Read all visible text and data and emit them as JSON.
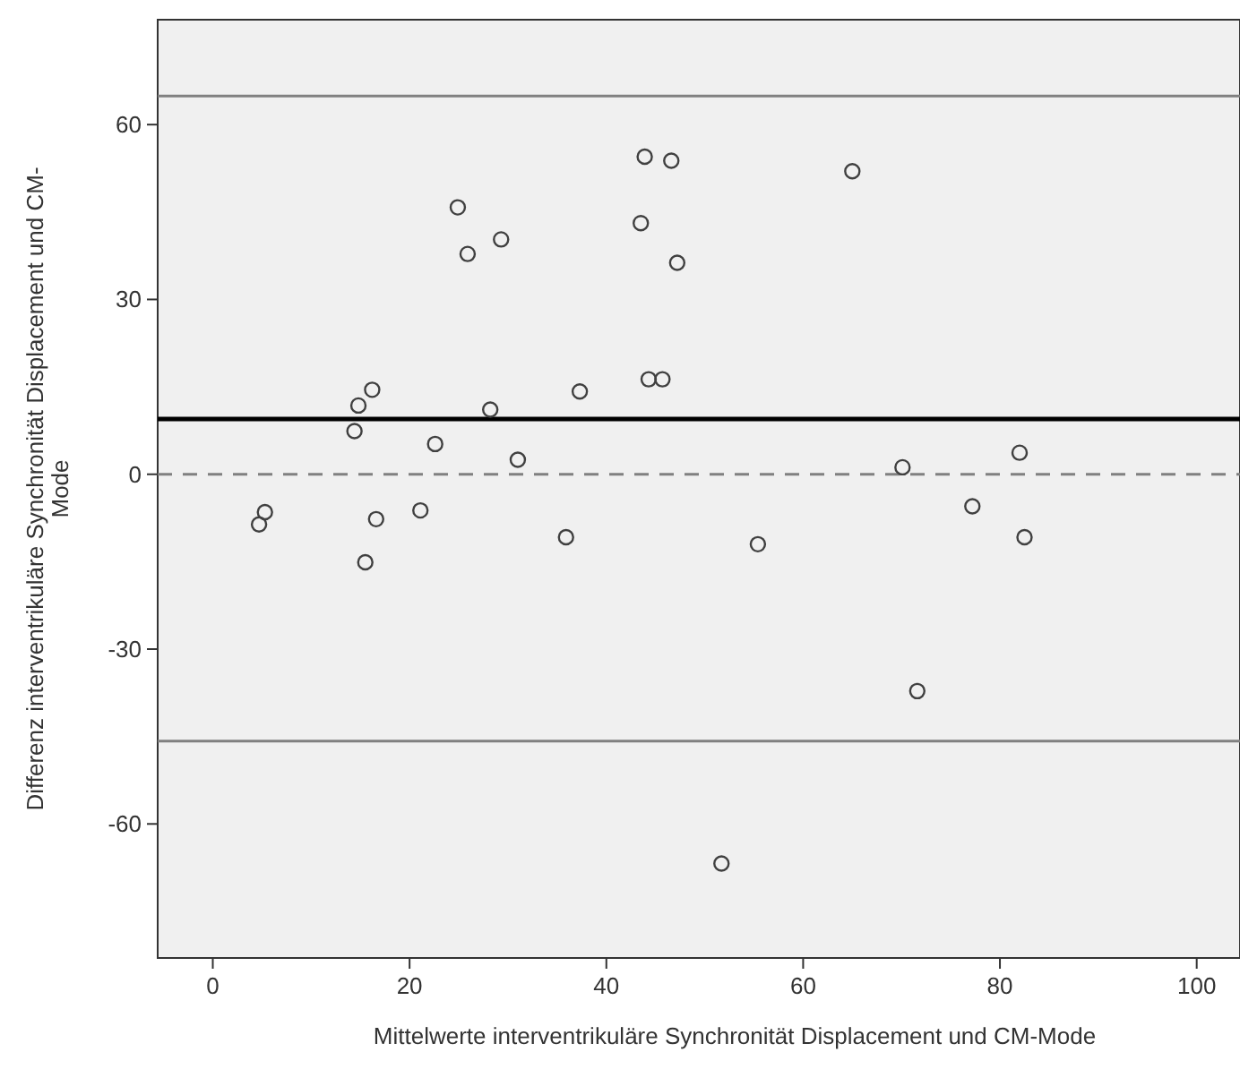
{
  "chart_data": {
    "type": "scatter",
    "xlabel": "Mittelwerte interventrikuläre Synchronität Displacement und CM-Mode",
    "ylabel": "Differenz interventrikuläre Synchronität Displacement und CM-Mode",
    "xlim": [
      -5.6,
      104.4
    ],
    "ylim": [
      -83,
      78
    ],
    "xticks": [
      0,
      20,
      40,
      60,
      80,
      100
    ],
    "yticks": [
      -60,
      -30,
      0,
      30,
      60
    ],
    "grid": false,
    "marker": "circle",
    "x": [
      4.7,
      5.3,
      14.4,
      14.8,
      16.2,
      15.5,
      16.6,
      21.1,
      22.6,
      24.9,
      25.9,
      29.3,
      28.2,
      31.0,
      35.9,
      37.3,
      43.5,
      43.9,
      44.3,
      45.7,
      46.6,
      47.2,
      55.4,
      65.0,
      51.7,
      70.1,
      71.6,
      77.2,
      82.0,
      82.5
    ],
    "series": [
      {
        "color": "#404040",
        "values": [
          -8.6,
          -6.5,
          7.4,
          11.8,
          14.5,
          -15.1,
          -7.7,
          -6.2,
          5.2,
          45.8,
          37.8,
          40.3,
          11.1,
          2.5,
          -10.8,
          14.2,
          43.1,
          54.5,
          16.3,
          16.3,
          53.8,
          36.3,
          -12.0,
          52.0,
          -66.8,
          1.2,
          -37.2,
          -5.5,
          3.7,
          -10.8
        ]
      }
    ],
    "ref_lines": [
      {
        "axis": "y",
        "value": 64.9,
        "color": "#808080",
        "line_style": "solid"
      },
      {
        "axis": "y",
        "value": 9.5,
        "color": "#000000",
        "line_style": "solid"
      },
      {
        "axis": "y",
        "value": 0,
        "color": "#808080",
        "line_style": "dashed"
      },
      {
        "axis": "y",
        "value": -45.8,
        "color": "#808080",
        "line_style": "solid"
      }
    ]
  }
}
